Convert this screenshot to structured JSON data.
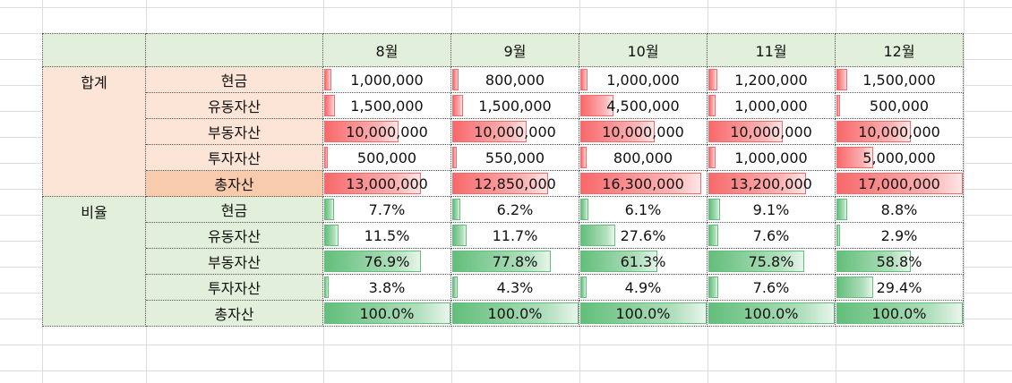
{
  "months": [
    "8월",
    "9월",
    "10월",
    "11월",
    "12월"
  ],
  "groups": [
    {
      "label": "합계",
      "color": "#f8696b",
      "rows": [
        {
          "label": "현금",
          "values": [
            "1,000,000",
            "800,000",
            "1,000,000",
            "1,200,000",
            "1,500,000"
          ],
          "levels": [
            0.058,
            0.047,
            0.058,
            0.07,
            0.088
          ]
        },
        {
          "label": "유동자산",
          "values": [
            "1,500,000",
            "1,500,000",
            "4,500,000",
            "1,000,000",
            "500,000"
          ],
          "levels": [
            0.088,
            0.088,
            0.265,
            0.058,
            0.029
          ]
        },
        {
          "label": "부동자산",
          "values": [
            "10,000,000",
            "10,000,000",
            "10,000,000",
            "10,000,000",
            "10,000,000"
          ],
          "levels": [
            0.588,
            0.588,
            0.588,
            0.588,
            0.588
          ]
        },
        {
          "label": "투자자산",
          "values": [
            "500,000",
            "550,000",
            "800,000",
            "1,000,000",
            "5,000,000"
          ],
          "levels": [
            0.029,
            0.032,
            0.047,
            0.058,
            0.294
          ]
        },
        {
          "label": "총자산",
          "values": [
            "13,000,000",
            "12,850,000",
            "16,300,000",
            "13,200,000",
            "17,000,000"
          ],
          "levels": [
            0.765,
            0.756,
            0.959,
            0.776,
            1.0
          ],
          "highlight": true
        }
      ]
    },
    {
      "label": "비율",
      "color": "#63be7b",
      "rows": [
        {
          "label": "현금",
          "values": [
            "7.7%",
            "6.2%",
            "6.1%",
            "9.1%",
            "8.8%"
          ],
          "levels": [
            0.077,
            0.062,
            0.061,
            0.091,
            0.088
          ]
        },
        {
          "label": "유동자산",
          "values": [
            "11.5%",
            "11.7%",
            "27.6%",
            "7.6%",
            "2.9%"
          ],
          "levels": [
            0.115,
            0.117,
            0.276,
            0.076,
            0.029
          ]
        },
        {
          "label": "부동자산",
          "values": [
            "76.9%",
            "77.8%",
            "61.3%",
            "75.8%",
            "58.8%"
          ],
          "levels": [
            0.769,
            0.778,
            0.613,
            0.758,
            0.588
          ]
        },
        {
          "label": "투자자산",
          "values": [
            "3.8%",
            "4.3%",
            "4.9%",
            "7.6%",
            "29.4%"
          ],
          "levels": [
            0.038,
            0.043,
            0.049,
            0.076,
            0.294
          ]
        },
        {
          "label": "총자산",
          "values": [
            "100.0%",
            "100.0%",
            "100.0%",
            "100.0%",
            "100.0%"
          ],
          "levels": [
            1.0,
            1.0,
            1.0,
            1.0,
            1.0
          ]
        }
      ]
    }
  ]
}
